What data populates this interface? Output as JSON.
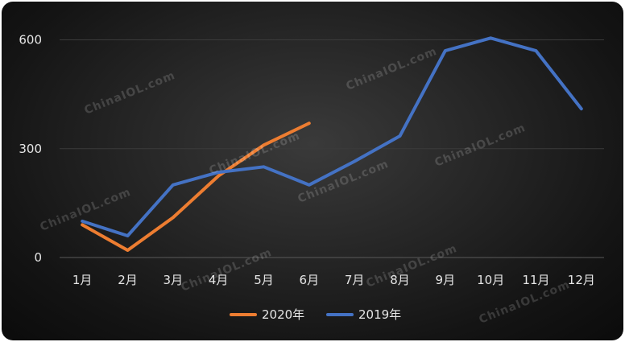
{
  "chart_data": {
    "type": "line",
    "title": "",
    "xlabel": "",
    "ylabel": "",
    "categories": [
      "1月",
      "2月",
      "3月",
      "4月",
      "5月",
      "6月",
      "7月",
      "8月",
      "9月",
      "10月",
      "11月",
      "12月"
    ],
    "ylim": [
      0,
      650
    ],
    "yticks": [
      0,
      300,
      600
    ],
    "grid": true,
    "legend": "bottom-center",
    "series": [
      {
        "name": "2020年",
        "color": "#ed7d31",
        "values": [
          90,
          20,
          110,
          225,
          310,
          370,
          null,
          null,
          null,
          null,
          null,
          null
        ]
      },
      {
        "name": "2019年",
        "color": "#4472c4",
        "values": [
          100,
          60,
          200,
          235,
          250,
          200,
          265,
          335,
          570,
          605,
          570,
          410
        ]
      }
    ]
  },
  "watermark": "ChinaIOL.com"
}
